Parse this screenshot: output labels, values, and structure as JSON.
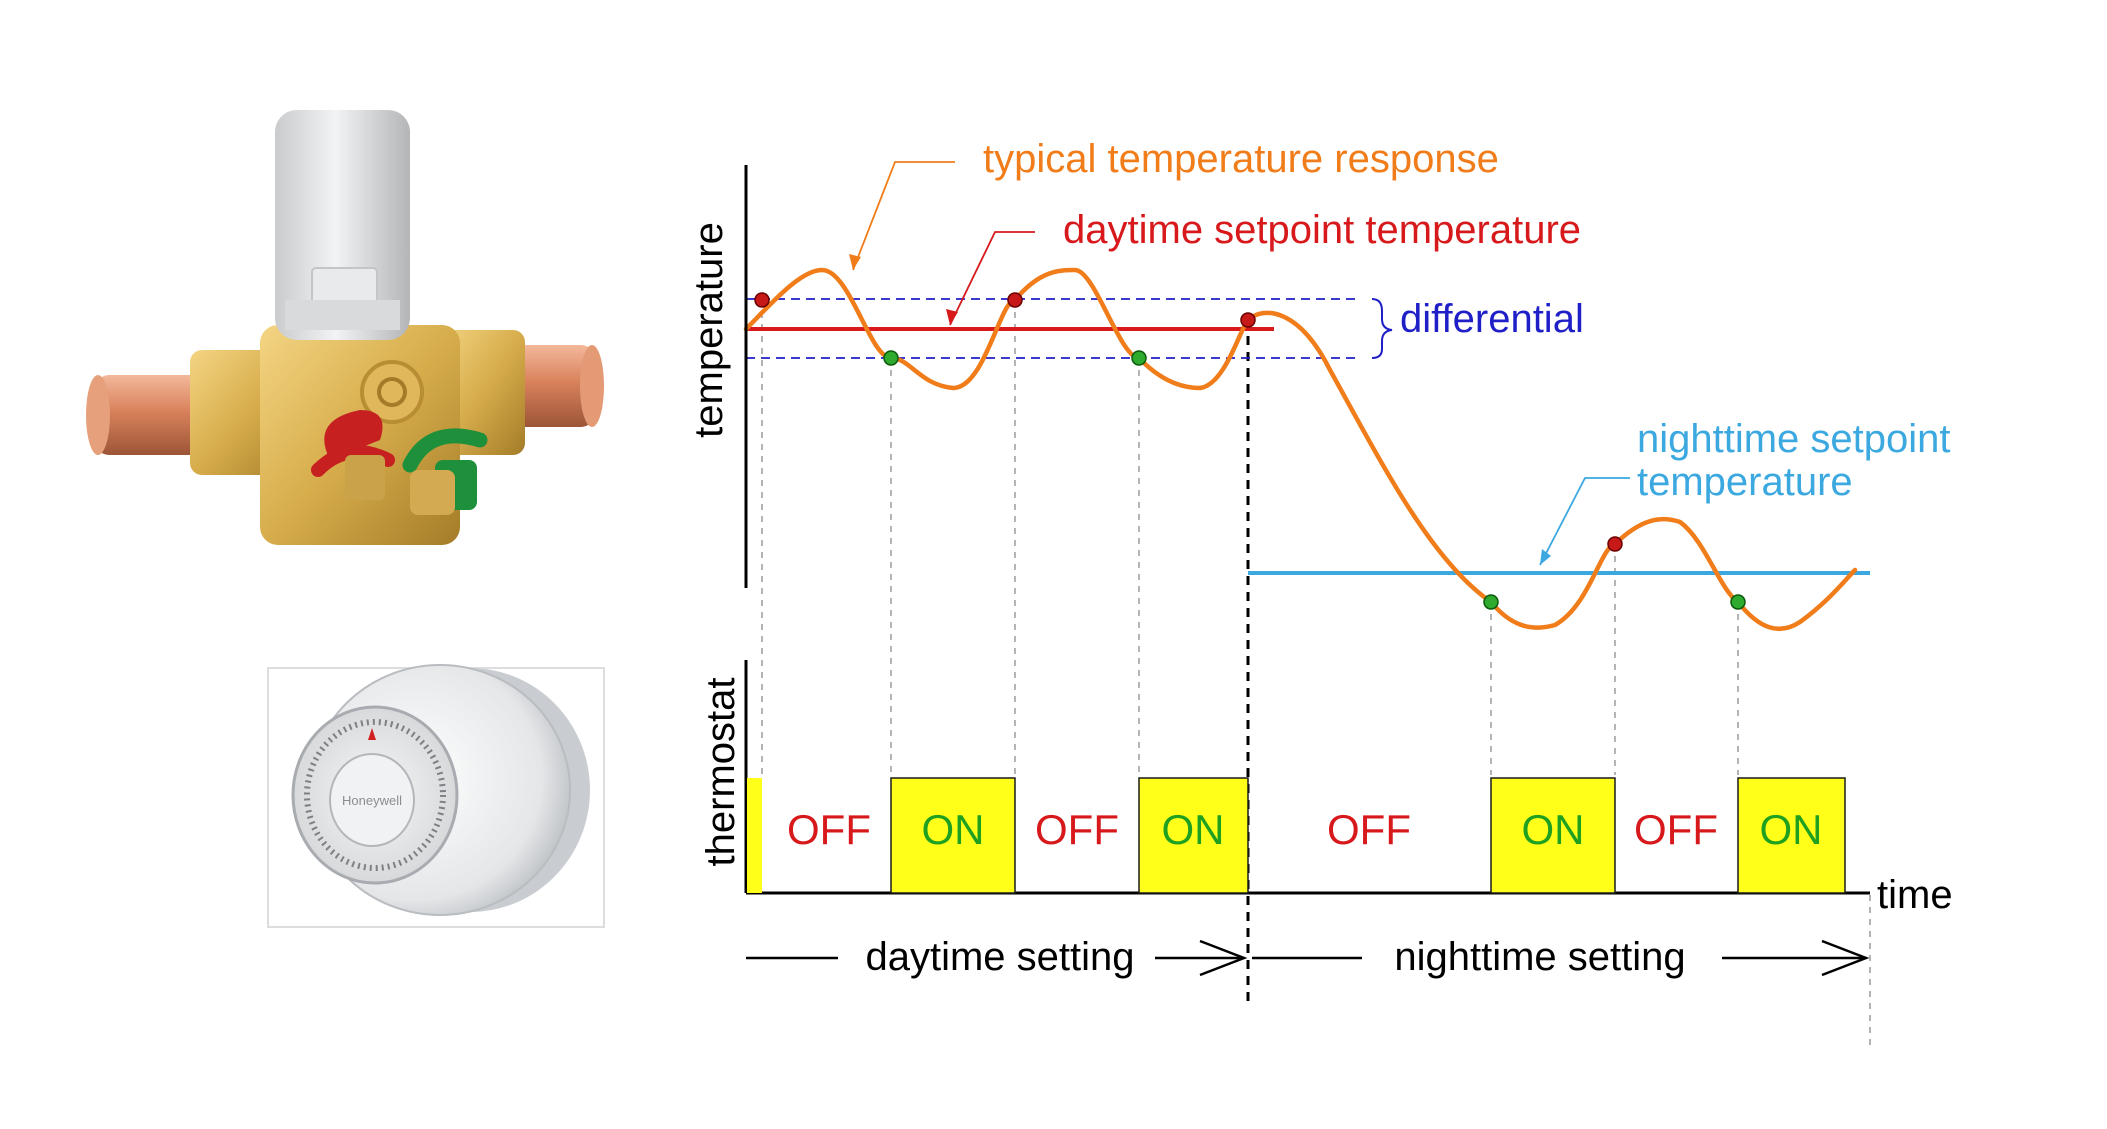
{
  "labels": {
    "temperature_response": "typical temperature response",
    "daytime_setpoint": "daytime setpoint temperature",
    "differential": "differential",
    "nighttime_setpoint_line1": "nighttime setpoint",
    "nighttime_setpoint_line2": "temperature",
    "y_axis_temperature": "temperature",
    "y_axis_thermostat": "thermostat",
    "x_axis_time": "time",
    "daytime_setting": "daytime setting",
    "nighttime_setting": "nighttime setting",
    "thermostat_brand": "Honeywell"
  },
  "thermostat_states": [
    "OFF",
    "ON",
    "OFF",
    "ON",
    "OFF",
    "ON",
    "OFF",
    "ON"
  ],
  "colors": {
    "response_curve": "#F07C1A",
    "daytime_setpoint": "#D7191C",
    "differential": "#1F1FC8",
    "nighttime_setpoint": "#3BA8E0",
    "on_fill": "#FFFF1A",
    "on_text": "#1FA01F",
    "off_text": "#D7191C",
    "turn_off_point": "#C81919",
    "turn_on_point": "#2EAA2E"
  }
}
